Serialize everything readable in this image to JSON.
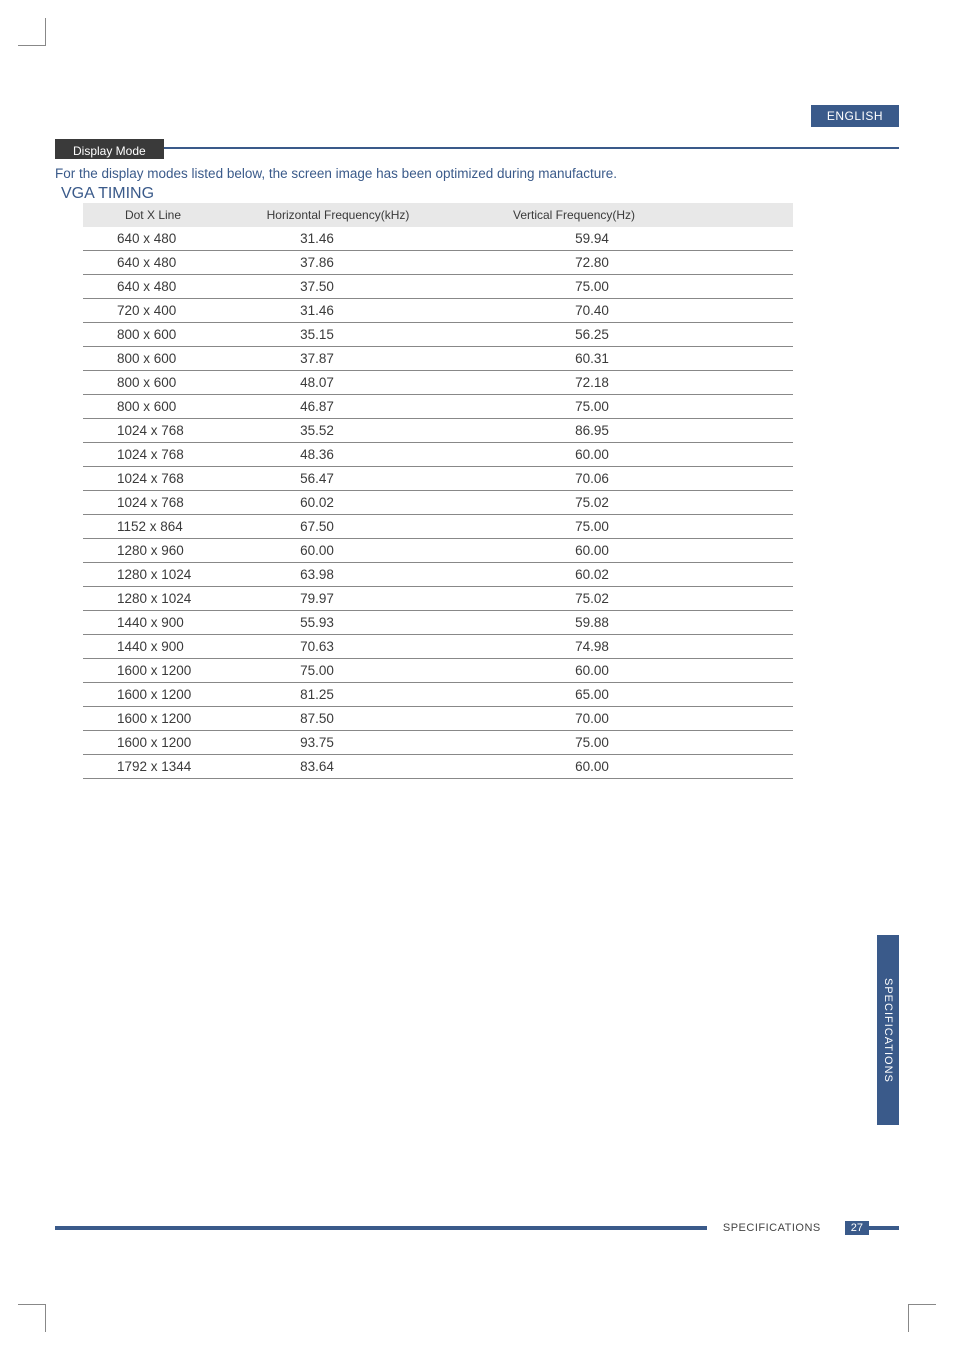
{
  "language_badge": "ENGLISH",
  "section_title": "Display Mode",
  "intro_text": "For the display modes listed below, the screen image has been optimized during manufacture.",
  "timing_heading": "VGA TIMING",
  "table": {
    "columns": [
      "Dot X Line",
      "Horizontal Frequency(kHz)",
      "Vertical Frequency(Hz)"
    ],
    "rows": [
      [
        "640 x 480",
        "31.46",
        "59.94"
      ],
      [
        "640 x 480",
        "37.86",
        "72.80"
      ],
      [
        "640 x 480",
        "37.50",
        "75.00"
      ],
      [
        "720 x 400",
        "31.46",
        "70.40"
      ],
      [
        "800 x 600",
        "35.15",
        "56.25"
      ],
      [
        "800 x 600",
        "37.87",
        "60.31"
      ],
      [
        "800 x 600",
        "48.07",
        "72.18"
      ],
      [
        "800 x 600",
        "46.87",
        "75.00"
      ],
      [
        "1024 x 768",
        "35.52",
        "86.95"
      ],
      [
        "1024 x 768",
        "48.36",
        "60.00"
      ],
      [
        "1024 x 768",
        "56.47",
        "70.06"
      ],
      [
        "1024 x 768",
        "60.02",
        "75.02"
      ],
      [
        "1152 x 864",
        "67.50",
        "75.00"
      ],
      [
        "1280 x 960",
        "60.00",
        "60.00"
      ],
      [
        "1280 x 1024",
        "63.98",
        "60.02"
      ],
      [
        "1280 x 1024",
        "79.97",
        "75.02"
      ],
      [
        "1440 x 900",
        "55.93",
        "59.88"
      ],
      [
        "1440 x 900",
        "70.63",
        "74.98"
      ],
      [
        "1600 x 1200",
        "75.00",
        "60.00"
      ],
      [
        "1600 x 1200",
        "81.25",
        "65.00"
      ],
      [
        "1600 x 1200",
        "87.50",
        "70.00"
      ],
      [
        "1600 x 1200",
        "93.75",
        "75.00"
      ],
      [
        "1792 x 1344",
        "83.64",
        "60.00"
      ]
    ]
  },
  "side_tab": "SPECIFICATIONS",
  "footer_label": "SPECIFICATIONS",
  "page_number": "27",
  "colors": {
    "accent": "#3a5a8a",
    "dark": "#3a3a3a",
    "header_bg": "#e8e8e8",
    "row_border": "#888888"
  }
}
